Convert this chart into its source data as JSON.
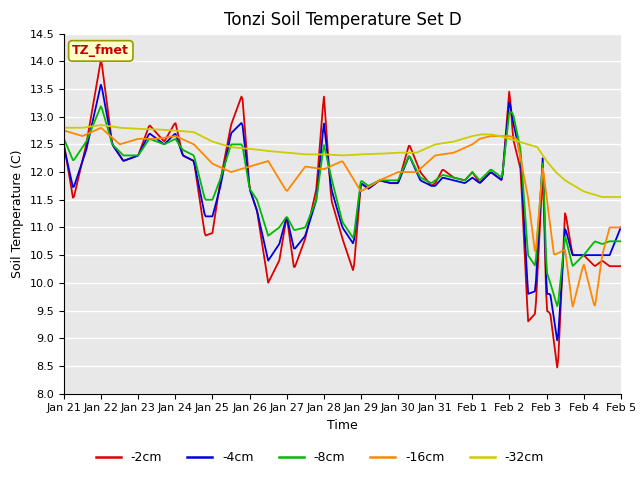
{
  "title": "Tonzi Soil Temperature Set D",
  "xlabel": "Time",
  "ylabel": "Soil Temperature (C)",
  "ylim": [
    8.0,
    14.5
  ],
  "legend_label": "TZ_fmet",
  "legend_box_color": "#ffffcc",
  "legend_box_edge": "#999900",
  "series_labels": [
    "-2cm",
    "-4cm",
    "-8cm",
    "-16cm",
    "-32cm"
  ],
  "series_colors": [
    "#dd0000",
    "#0000dd",
    "#00bb00",
    "#ff8800",
    "#cccc00"
  ],
  "x_tick_labels": [
    "Jan 21",
    "Jan 22",
    "Jan 23",
    "Jan 24",
    "Jan 25",
    "Jan 26",
    "Jan 27",
    "Jan 28",
    "Jan 29",
    "Jan 30",
    "Jan 31",
    "Feb 1",
    "Feb 2",
    "Feb 3",
    "Feb 4",
    "Feb 5"
  ],
  "background_color": "#e8e8e8",
  "title_fontsize": 12,
  "axis_fontsize": 9,
  "tick_fontsize": 8
}
